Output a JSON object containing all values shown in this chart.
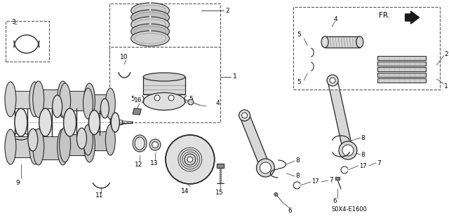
{
  "bg_color": "#ffffff",
  "lc": "#2a2a2a",
  "fig_w": 6.4,
  "fig_h": 3.16,
  "dpi": 100,
  "part_code": "S0X4-E1600"
}
